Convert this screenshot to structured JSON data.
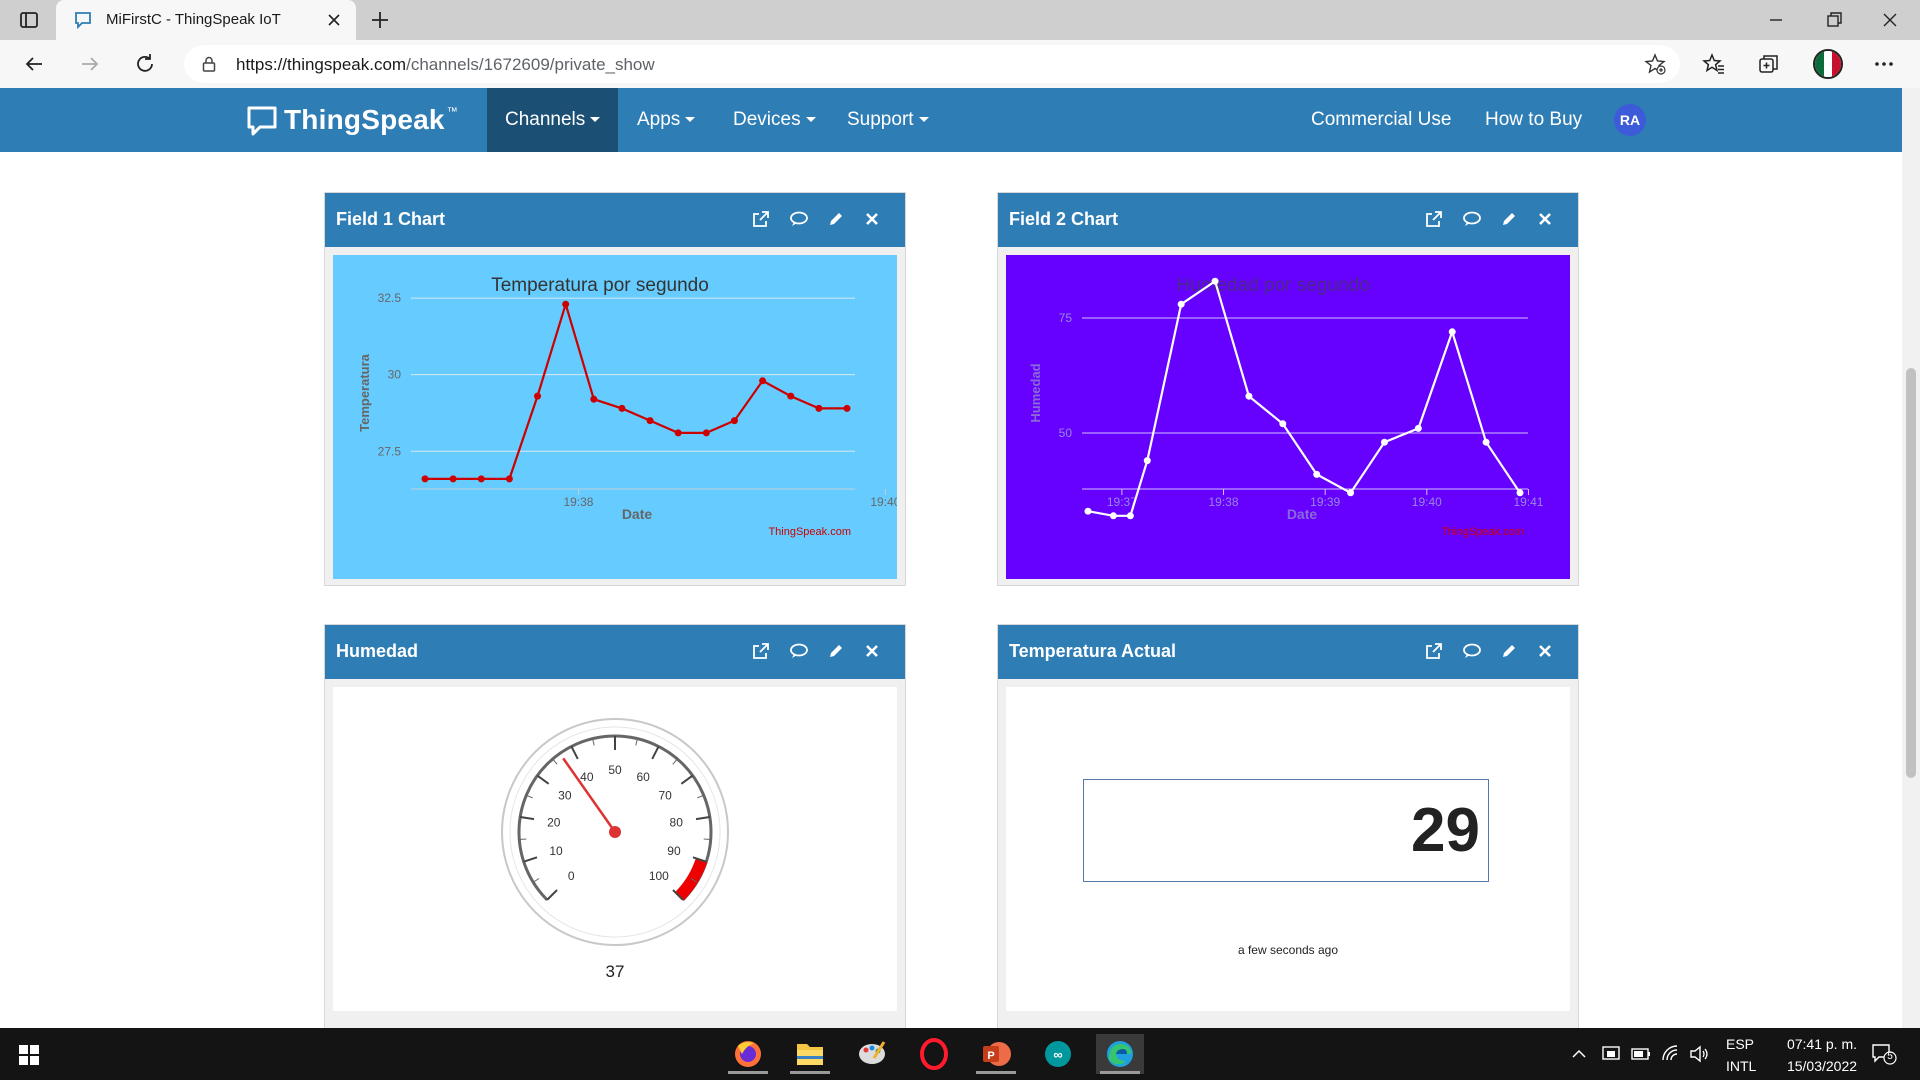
{
  "browser": {
    "tab_title": "MiFirstC - ThingSpeak IoT",
    "url_host": "https://thingspeak.com",
    "url_path": "/channels/1672609/private_show"
  },
  "nav": {
    "logo": "ThingSpeak",
    "logo_tm": "™",
    "menu": [
      "Channels",
      "Apps",
      "Devices",
      "Support"
    ],
    "right_links": [
      "Commercial Use",
      "How to Buy"
    ],
    "user_initials": "RA"
  },
  "widgets": {
    "field1": {
      "header": "Field 1 Chart",
      "chart_data": {
        "type": "line",
        "title": "Temperatura por segundo",
        "xlabel": "Date",
        "ylabel": "Temperatura",
        "yticks": [
          "27.5",
          "30",
          "32.5"
        ],
        "xticks": [
          "19:38",
          "19:40"
        ],
        "credit": "ThingSpeak.com",
        "ylim": [
          26.4,
          32.6
        ],
        "x": [
          "19:37:00",
          "19:37:11",
          "19:37:22",
          "19:37:33",
          "19:37:44",
          "19:37:55",
          "19:38:06",
          "19:38:17",
          "19:38:28",
          "19:38:39",
          "19:38:50",
          "19:39:01",
          "19:39:12",
          "19:39:23",
          "19:39:34",
          "19:39:45"
        ],
        "values": [
          26.6,
          26.6,
          26.6,
          26.6,
          29.3,
          32.3,
          29.2,
          28.9,
          28.5,
          28.1,
          28.1,
          28.5,
          29.8,
          29.3,
          28.9,
          28.9
        ],
        "colors": {
          "background": "#66ccff",
          "line": "#cc0000"
        }
      }
    },
    "field2": {
      "header": "Field 2 Chart",
      "chart_data": {
        "type": "line",
        "title": "Humedad por segundo",
        "xlabel": "Date",
        "ylabel": "Humedad",
        "yticks": [
          "50",
          "75"
        ],
        "xticks": [
          "19:37",
          "19:38",
          "19:39",
          "19:40",
          "19:41"
        ],
        "credit": "ThingSpeak.com",
        "ylim": [
          30,
          80
        ],
        "x": [
          "19:36:40",
          "19:36:55",
          "19:37:05",
          "19:37:15",
          "19:37:35",
          "19:37:55",
          "19:38:15",
          "19:38:35",
          "19:38:55",
          "19:39:15",
          "19:39:35",
          "19:39:55",
          "19:40:15",
          "19:40:35",
          "19:40:55"
        ],
        "values": [
          33,
          32,
          32,
          44,
          78,
          83,
          58,
          52,
          41,
          37,
          48,
          51,
          72,
          48,
          37
        ],
        "colors": {
          "background": "#6600ff",
          "line": "#ffffff"
        }
      }
    },
    "humedad": {
      "header": "Humedad",
      "gauge_labels": [
        "0",
        "10",
        "20",
        "30",
        "40",
        "50",
        "60",
        "70",
        "80",
        "90",
        "100"
      ],
      "value": 37,
      "value_text": "37",
      "max": 100,
      "danger_from": 90
    },
    "temperatura": {
      "header": "Temperatura Actual",
      "value": "29",
      "updated": "a few seconds ago"
    }
  },
  "taskbar": {
    "apps": [
      "Firefox",
      "File Explorer",
      "Paint",
      "Opera",
      "PowerPoint",
      "Arduino",
      "Microsoft Edge"
    ],
    "lang_top": "ESP",
    "lang_bottom": "INTL",
    "time": "07:41 p. m.",
    "date": "15/03/2022",
    "notifications": "5"
  }
}
